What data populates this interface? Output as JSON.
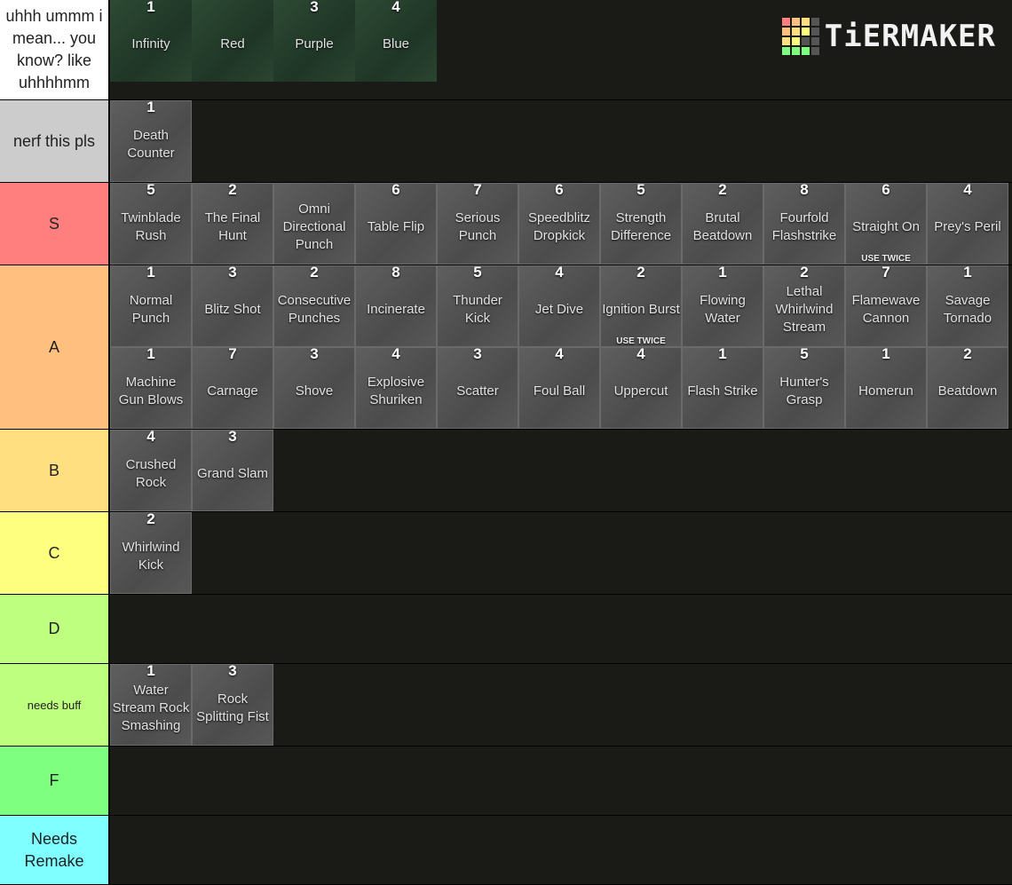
{
  "logo": "TiERMAKER",
  "tiers": [
    {
      "label": "uhhh ummm i mean... you know? like uhhhhmm",
      "color": "#ffffff",
      "items": [
        {
          "number": "1",
          "name": "Infinity"
        },
        {
          "name": "Red"
        },
        {
          "number": "3",
          "name": "Purple"
        },
        {
          "number": "4",
          "name": "Blue"
        }
      ]
    },
    {
      "label": "nerf this pls",
      "color": "#cccccc",
      "items": [
        {
          "number": "1",
          "name": "Death Counter"
        }
      ]
    },
    {
      "label": "S",
      "color": "#ff7f7f",
      "items": [
        {
          "number": "5",
          "name": "Twinblade Rush"
        },
        {
          "number": "2",
          "name": "The Final Hunt"
        },
        {
          "name": "Omni Directional Punch"
        },
        {
          "number": "6",
          "name": "Table Flip"
        },
        {
          "number": "7",
          "name": "Serious Punch"
        },
        {
          "number": "6",
          "name": "Speedblitz Dropkick"
        },
        {
          "number": "5",
          "name": "Strength Difference"
        },
        {
          "number": "2",
          "name": "Brutal Beatdown"
        },
        {
          "number": "8",
          "name": "Fourfold Flashstrike"
        },
        {
          "number": "6",
          "name": "Straight On",
          "note": "USE TWICE"
        },
        {
          "number": "4",
          "name": "Prey's Peril"
        }
      ]
    },
    {
      "label": "A",
      "color": "#ffbf7f",
      "items": [
        {
          "number": "1",
          "name": "Normal Punch"
        },
        {
          "number": "3",
          "name": "Blitz Shot"
        },
        {
          "number": "2",
          "name": "Consecutive Punches"
        },
        {
          "number": "8",
          "name": "Incinerate"
        },
        {
          "number": "5",
          "name": "Thunder Kick"
        },
        {
          "number": "4",
          "name": "Jet Dive"
        },
        {
          "number": "2",
          "name": "Ignition Burst",
          "note": "USE TWICE"
        },
        {
          "number": "1",
          "name": "Flowing Water"
        },
        {
          "number": "2",
          "name": "Lethal Whirlwind Stream"
        },
        {
          "number": "7",
          "name": "Flamewave Cannon"
        },
        {
          "number": "1",
          "name": "Savage Tornado"
        },
        {
          "number": "1",
          "name": "Machine Gun Blows"
        },
        {
          "number": "7",
          "name": "Carnage"
        },
        {
          "number": "3",
          "name": "Shove"
        },
        {
          "number": "4",
          "name": "Explosive Shuriken"
        },
        {
          "number": "3",
          "name": "Scatter"
        },
        {
          "number": "4",
          "name": "Foul Ball"
        },
        {
          "number": "4",
          "name": "Uppercut"
        },
        {
          "number": "1",
          "name": "Flash Strike"
        },
        {
          "number": "5",
          "name": "Hunter's Grasp"
        },
        {
          "number": "1",
          "name": "Homerun"
        },
        {
          "number": "2",
          "name": "Beatdown"
        }
      ]
    },
    {
      "label": "B",
      "color": "#ffdf7f",
      "items": [
        {
          "number": "4",
          "name": "Crushed Rock"
        },
        {
          "number": "3",
          "name": "Grand Slam"
        }
      ]
    },
    {
      "label": "C",
      "color": "#ffff7f",
      "items": [
        {
          "number": "2",
          "name": "Whirlwind Kick"
        }
      ]
    },
    {
      "label": "D",
      "color": "#bfff7f",
      "items": []
    },
    {
      "label": "needs buff",
      "color": "#bfff7f",
      "items": [
        {
          "number": "1",
          "name": "Water Stream Rock Smashing"
        },
        {
          "number": "3",
          "name": "Rock Splitting Fist"
        }
      ]
    },
    {
      "label": "F",
      "color": "#7fff7f",
      "items": []
    },
    {
      "label": "Needs Remake",
      "color": "#7fffff",
      "items": []
    }
  ]
}
